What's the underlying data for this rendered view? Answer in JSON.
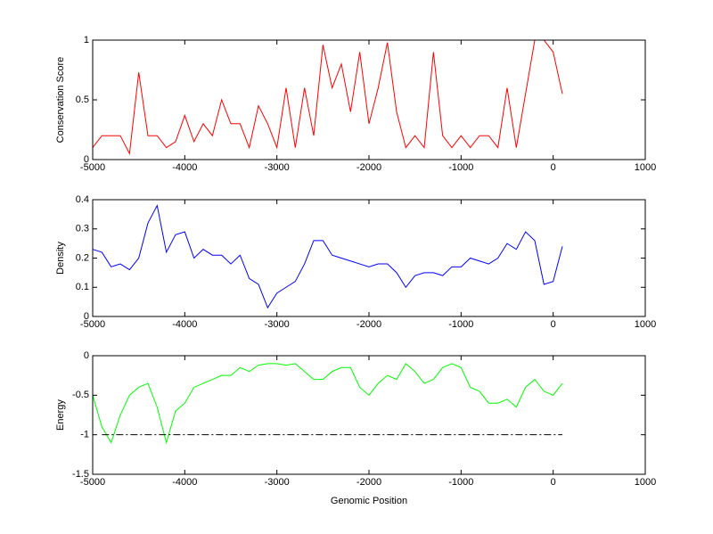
{
  "chart_data": [
    {
      "type": "line",
      "ylabel": "Conservation Score",
      "color": "#ff0000",
      "x": [
        -5000,
        -4900,
        -4800,
        -4700,
        -4600,
        -4500,
        -4400,
        -4300,
        -4200,
        -4100,
        -4000,
        -3900,
        -3800,
        -3700,
        -3600,
        -3500,
        -3400,
        -3300,
        -3200,
        -3100,
        -3000,
        -2900,
        -2800,
        -2700,
        -2600,
        -2500,
        -2400,
        -2300,
        -2200,
        -2100,
        -2000,
        -1900,
        -1800,
        -1700,
        -1600,
        -1500,
        -1400,
        -1300,
        -1200,
        -1100,
        -1000,
        -900,
        -800,
        -700,
        -600,
        -500,
        -400,
        -300,
        -200,
        -100,
        0,
        100
      ],
      "values": [
        0.1,
        0.2,
        0.2,
        0.2,
        0.05,
        0.73,
        0.2,
        0.2,
        0.1,
        0.15,
        0.37,
        0.15,
        0.3,
        0.2,
        0.5,
        0.3,
        0.3,
        0.1,
        0.45,
        0.3,
        0.1,
        0.6,
        0.1,
        0.6,
        0.2,
        0.96,
        0.6,
        0.8,
        0.4,
        0.9,
        0.3,
        0.6,
        0.98,
        0.4,
        0.1,
        0.2,
        0.1,
        0.9,
        0.2,
        0.1,
        0.2,
        0.1,
        0.2,
        0.2,
        0.1,
        0.6,
        0.1,
        0.55,
        1,
        1,
        0.9,
        0.55
      ],
      "xlim": [
        -5000,
        1000
      ],
      "xticks": [
        -5000,
        -4000,
        -3000,
        -2000,
        -1000,
        0,
        1000
      ],
      "ylim": [
        0,
        1
      ],
      "yticks": [
        0,
        0.5,
        1
      ]
    },
    {
      "type": "line",
      "ylabel": "Density",
      "color": "#0000ff",
      "x": [
        -5000,
        -4900,
        -4800,
        -4700,
        -4600,
        -4500,
        -4400,
        -4300,
        -4200,
        -4100,
        -4000,
        -3900,
        -3800,
        -3700,
        -3600,
        -3500,
        -3400,
        -3300,
        -3200,
        -3100,
        -3000,
        -2900,
        -2800,
        -2700,
        -2600,
        -2500,
        -2400,
        -2300,
        -2200,
        -2100,
        -2000,
        -1900,
        -1800,
        -1700,
        -1600,
        -1500,
        -1400,
        -1300,
        -1200,
        -1100,
        -1000,
        -900,
        -800,
        -700,
        -600,
        -500,
        -400,
        -300,
        -200,
        -100,
        0,
        100
      ],
      "values": [
        0.23,
        0.22,
        0.17,
        0.18,
        0.16,
        0.2,
        0.32,
        0.38,
        0.22,
        0.28,
        0.29,
        0.2,
        0.23,
        0.21,
        0.21,
        0.18,
        0.21,
        0.13,
        0.11,
        0.03,
        0.08,
        0.1,
        0.12,
        0.18,
        0.26,
        0.26,
        0.21,
        0.2,
        0.19,
        0.18,
        0.17,
        0.18,
        0.18,
        0.15,
        0.1,
        0.14,
        0.15,
        0.15,
        0.14,
        0.17,
        0.17,
        0.2,
        0.19,
        0.18,
        0.2,
        0.25,
        0.23,
        0.29,
        0.26,
        0.11,
        0.12,
        0.24
      ],
      "xlim": [
        -5000,
        1000
      ],
      "xticks": [
        -5000,
        -4000,
        -3000,
        -2000,
        -1000,
        0,
        1000
      ],
      "ylim": [
        0,
        0.4
      ],
      "yticks": [
        0,
        0.1,
        0.2,
        0.3,
        0.4
      ]
    },
    {
      "type": "line",
      "ylabel": "Energy",
      "xlabel": "Genomic Position",
      "color": "#00ff00",
      "x": [
        -5000,
        -4900,
        -4800,
        -4700,
        -4600,
        -4500,
        -4400,
        -4300,
        -4200,
        -4100,
        -4000,
        -3900,
        -3800,
        -3700,
        -3600,
        -3500,
        -3400,
        -3300,
        -3200,
        -3100,
        -3000,
        -2900,
        -2800,
        -2700,
        -2600,
        -2500,
        -2400,
        -2300,
        -2200,
        -2100,
        -2000,
        -1900,
        -1800,
        -1700,
        -1600,
        -1500,
        -1400,
        -1300,
        -1200,
        -1100,
        -1000,
        -900,
        -800,
        -700,
        -600,
        -500,
        -400,
        -300,
        -200,
        -100,
        0,
        100
      ],
      "values": [
        -0.5,
        -0.9,
        -1.1,
        -0.75,
        -0.5,
        -0.4,
        -0.35,
        -0.65,
        -1.1,
        -0.7,
        -0.6,
        -0.4,
        -0.35,
        -0.3,
        -0.25,
        -0.25,
        -0.15,
        -0.2,
        -0.12,
        -0.1,
        -0.1,
        -0.12,
        -0.1,
        -0.2,
        -0.3,
        -0.3,
        -0.2,
        -0.15,
        -0.15,
        -0.4,
        -0.5,
        -0.35,
        -0.25,
        -0.3,
        -0.1,
        -0.2,
        -0.35,
        -0.3,
        -0.15,
        -0.1,
        -0.15,
        -0.4,
        -0.45,
        -0.6,
        -0.6,
        -0.55,
        -0.65,
        -0.4,
        -0.3,
        -0.45,
        -0.5,
        -0.35
      ],
      "reference_lines": [
        {
          "x": [
            -4900,
            100
          ],
          "values": [
            -1,
            -1
          ],
          "color": "#000000",
          "style": "dashdot"
        }
      ],
      "xlim": [
        -5000,
        1000
      ],
      "xticks": [
        -5000,
        -4000,
        -3000,
        -2000,
        -1000,
        0,
        1000
      ],
      "ylim": [
        -1.5,
        0
      ],
      "yticks": [
        -1.5,
        -1,
        -0.5,
        0
      ]
    }
  ]
}
